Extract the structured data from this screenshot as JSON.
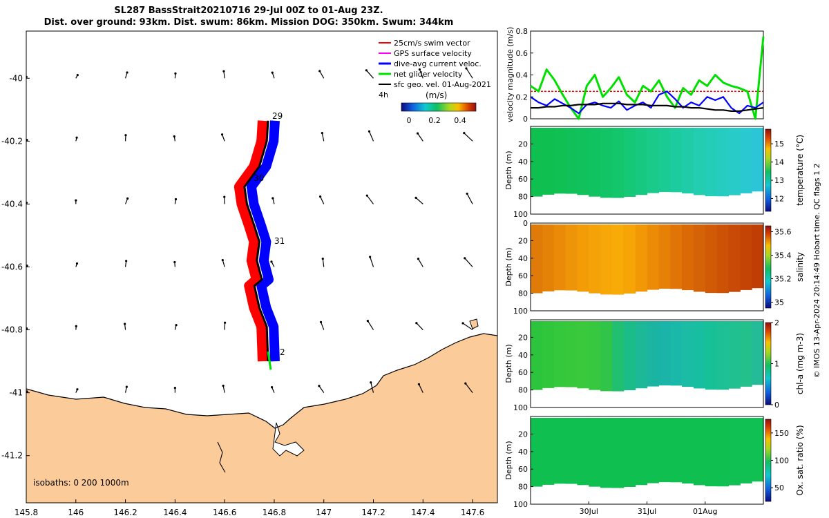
{
  "header": {
    "line1": "SL287 BassStrait20210716 29-Jul 00Z to 01-Aug 23Z.",
    "line2": "Dist. over ground: 93km. Dist. swum: 86km. Mission DOG: 350km. Swum: 344km"
  },
  "footer": {
    "stamp": "© IMOS 13-Apr-2024 20:14:49 Hobart time. QC flags 1  2"
  },
  "map": {
    "legend": [
      {
        "label": "25cm/s swim vector",
        "color": "#ff0000"
      },
      {
        "label": "GPS surface velocity",
        "color": "#ff00ff"
      },
      {
        "label": "dive-avg current veloc.",
        "color": "#0000ff"
      },
      {
        "label": "net glider velocity",
        "color": "#00e000"
      },
      {
        "label": "sfc geo. vel. 01-Aug-2021",
        "color": "#000000"
      }
    ],
    "interval_label": "4h",
    "colorbar_label": "(m/s)",
    "colorbar_ticks": [
      "0",
      "0.2",
      "0.4"
    ],
    "isobaths_label": "isobaths: 0   200  1000m",
    "day_labels": [
      "29",
      "30",
      "31",
      "2"
    ],
    "land_color": "#fbcb99"
  },
  "chart_data": [
    {
      "type": "scatter",
      "name": "glider track map",
      "xlabel": "",
      "ylabel": "",
      "xlim": [
        145.8,
        147.7
      ],
      "ylim": [
        -41.35,
        -39.85
      ],
      "x_ticks": [
        "145.8",
        "146",
        "146.2",
        "146.4",
        "146.6",
        "146.8",
        "147",
        "147.2",
        "147.4",
        "147.6"
      ],
      "y_ticks": [
        "-40",
        "-40.2",
        "-40.4",
        "-40.6",
        "-40.8",
        "-41",
        "-41.2"
      ],
      "track": [
        {
          "lon": 146.775,
          "lat": -40.135
        },
        {
          "lon": 146.77,
          "lat": -40.2
        },
        {
          "lon": 146.74,
          "lat": -40.28
        },
        {
          "lon": 146.68,
          "lat": -40.345
        },
        {
          "lon": 146.69,
          "lat": -40.4
        },
        {
          "lon": 146.72,
          "lat": -40.47
        },
        {
          "lon": 146.74,
          "lat": -40.52
        },
        {
          "lon": 146.73,
          "lat": -40.58
        },
        {
          "lon": 146.75,
          "lat": -40.64
        },
        {
          "lon": 146.72,
          "lat": -40.66
        },
        {
          "lon": 146.74,
          "lat": -40.73
        },
        {
          "lon": 146.77,
          "lat": -40.79
        },
        {
          "lon": 146.775,
          "lat": -40.9
        }
      ]
    },
    {
      "type": "line",
      "name": "velocity time series",
      "xlabel": "",
      "ylabel": "velocity magnitude (m/s)",
      "ylim": [
        0,
        0.8
      ],
      "y_ticks": [
        "0",
        "0.2",
        "0.4",
        "0.6",
        "0.8"
      ],
      "series": [
        {
          "name": "25cm/s swim vector",
          "color": "#ff0000",
          "values": [
            0.25,
            0.25,
            0.25,
            0.25,
            0.25,
            0.25,
            0.25,
            0.25,
            0.25,
            0.25,
            0.25,
            0.25,
            0.25,
            0.25,
            0.25,
            0.25,
            0.25,
            0.25,
            0.25,
            0.25,
            0.25,
            0.25,
            0.25,
            0.25,
            0.25,
            0.25,
            0.25,
            0.25,
            0.25,
            0.25
          ]
        },
        {
          "name": "net glider velocity",
          "color": "#00e000",
          "values": [
            0.3,
            0.25,
            0.45,
            0.35,
            0.22,
            0.1,
            0.0,
            0.3,
            0.4,
            0.2,
            0.28,
            0.38,
            0.22,
            0.15,
            0.3,
            0.25,
            0.35,
            0.2,
            0.1,
            0.28,
            0.22,
            0.35,
            0.3,
            0.4,
            0.33,
            0.3,
            0.28,
            0.25,
            0.0,
            0.75
          ]
        },
        {
          "name": "dive-avg current veloc.",
          "color": "#0000ff",
          "values": [
            0.2,
            0.15,
            0.12,
            0.18,
            0.14,
            0.1,
            0.05,
            0.13,
            0.15,
            0.12,
            0.1,
            0.16,
            0.08,
            0.12,
            0.15,
            0.1,
            0.22,
            0.25,
            0.18,
            0.1,
            0.15,
            0.12,
            0.2,
            0.17,
            0.2,
            0.1,
            0.05,
            0.12,
            0.1,
            0.15
          ]
        },
        {
          "name": "sfc geo. vel. 01-Aug-2021",
          "color": "#000000",
          "values": [
            0.1,
            0.1,
            0.11,
            0.11,
            0.12,
            0.12,
            0.13,
            0.13,
            0.13,
            0.14,
            0.14,
            0.14,
            0.13,
            0.13,
            0.13,
            0.12,
            0.12,
            0.12,
            0.11,
            0.11,
            0.1,
            0.1,
            0.09,
            0.08,
            0.08,
            0.07,
            0.07,
            0.08,
            0.09,
            0.1
          ]
        }
      ]
    },
    {
      "type": "heatmap",
      "name": "temperature section",
      "ylabel": "Depth (m)",
      "colorbar_label": "temperature (°C)",
      "colorbar_ticks": [
        "12",
        "13",
        "14",
        "15"
      ],
      "clim": [
        11.3,
        15.8
      ],
      "y_ticks": [
        "20",
        "40",
        "60",
        "80",
        "100"
      ],
      "colors": [
        "#0a0a80",
        "#1060e0",
        "#10c8d0",
        "#10c060",
        "#a8d820",
        "#f8c000",
        "#d84000",
        "#901010"
      ],
      "column_colors": [
        "#0fbf4f",
        "#0fbf50",
        "#10c053",
        "#10c058",
        "#10c15c",
        "#11c260",
        "#12c466",
        "#13c66c",
        "#15c876",
        "#17c980",
        "#19ca8a",
        "#1bcb94",
        "#1dcc9e",
        "#20cca8",
        "#22cdb0",
        "#24cdb8",
        "#26ccc0",
        "#28cbc8",
        "#2ac8d0",
        "#2cc5d8"
      ]
    },
    {
      "type": "heatmap",
      "name": "salinity section",
      "ylabel": "Depth (m)",
      "colorbar_label": "salinity",
      "colorbar_ticks": [
        "35",
        "35.2",
        "35.4",
        "35.6"
      ],
      "clim": [
        34.95,
        35.65
      ],
      "y_ticks": [
        "0",
        "20",
        "40",
        "60",
        "80",
        "100"
      ],
      "colors": [
        "#0a0a80",
        "#1060e0",
        "#10c8d0",
        "#10c060",
        "#a8d820",
        "#f8c000",
        "#d84000",
        "#901010"
      ],
      "column_colors": [
        "#e07a08",
        "#e48208",
        "#e98a08",
        "#ee9408",
        "#f29c08",
        "#f5a208",
        "#f7a808",
        "#f8aa06",
        "#f6a406",
        "#f29806",
        "#ec8c06",
        "#e68006",
        "#e07406",
        "#da6a06",
        "#d46206",
        "#d05a06",
        "#cc5206",
        "#c84a06",
        "#c44406",
        "#c03e06"
      ]
    },
    {
      "type": "heatmap",
      "name": "chlorophyll section",
      "ylabel": "Depth (m)",
      "colorbar_label": "chl-a (mg m-3)",
      "colorbar_ticks": [
        "0",
        "1",
        "2"
      ],
      "clim": [
        0,
        2
      ],
      "y_ticks": [
        "20",
        "40",
        "60",
        "80",
        "100"
      ],
      "colors": [
        "#0a0a80",
        "#1060e0",
        "#10c8d0",
        "#10c060",
        "#a8d820",
        "#f8c000",
        "#d84000",
        "#901010"
      ],
      "column_colors": [
        "#2cc43c",
        "#30c63c",
        "#34c83c",
        "#38c83c",
        "#3ac83c",
        "#38c840",
        "#30c448",
        "#20c070",
        "#1cbc88",
        "#1cb898",
        "#1ab4a0",
        "#1ab4a8",
        "#1ab8a8",
        "#1abca4",
        "#18bea0",
        "#18c098",
        "#1cc094",
        "#20c090",
        "#24c08c",
        "#24bc98"
      ]
    },
    {
      "type": "heatmap",
      "name": "oxygen saturation section",
      "xlabel": "",
      "ylabel": "Depth (m)",
      "colorbar_label": "Ox. sat. ratio (%)",
      "colorbar_ticks": [
        "50",
        "100",
        "150"
      ],
      "clim": [
        25,
        175
      ],
      "x_ticks": [
        "30Jul",
        "31Jul",
        "01Aug"
      ],
      "y_ticks": [
        "20",
        "40",
        "60",
        "80",
        "100"
      ],
      "colors": [
        "#0a0a80",
        "#1060e0",
        "#10c8d0",
        "#10c060",
        "#a8d820",
        "#f8c000",
        "#d84000",
        "#901010"
      ],
      "column_colors": [
        "#0fbf50",
        "#0fbf50",
        "#0fbf50",
        "#0fbf50",
        "#0fbf50",
        "#0fbf50",
        "#0fbf50",
        "#0fbf50",
        "#0fbf50",
        "#0fbf50",
        "#0fbf50",
        "#0fbf50",
        "#0fbf50",
        "#0fbf50",
        "#0fbf50",
        "#0fbf50",
        "#0fbf50",
        "#10c052",
        "#10c052",
        "#10c052"
      ]
    }
  ]
}
